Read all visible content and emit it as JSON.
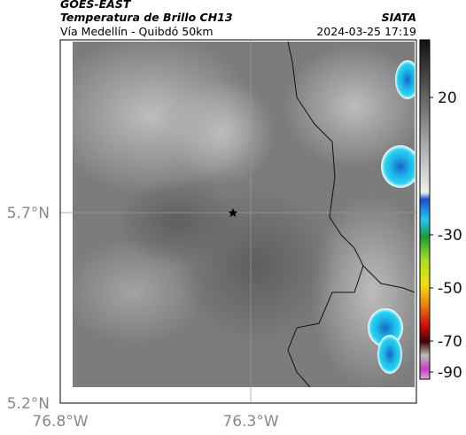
{
  "header": {
    "satellite": "GOES-EAST",
    "product": "Temperatura de Brillo CH13",
    "route": "Vía Medellín - Quibdó 50km",
    "source": "SIATA",
    "timestamp": "2024-03-25 17:19"
  },
  "axes": {
    "lat_labels": [
      "5.7°N",
      "5.2°N"
    ],
    "lon_labels": [
      "76.8°W",
      "76.3°W"
    ]
  },
  "colorbar": {
    "ticks": [
      20,
      -30,
      -50,
      -70,
      -90
    ]
  }
}
